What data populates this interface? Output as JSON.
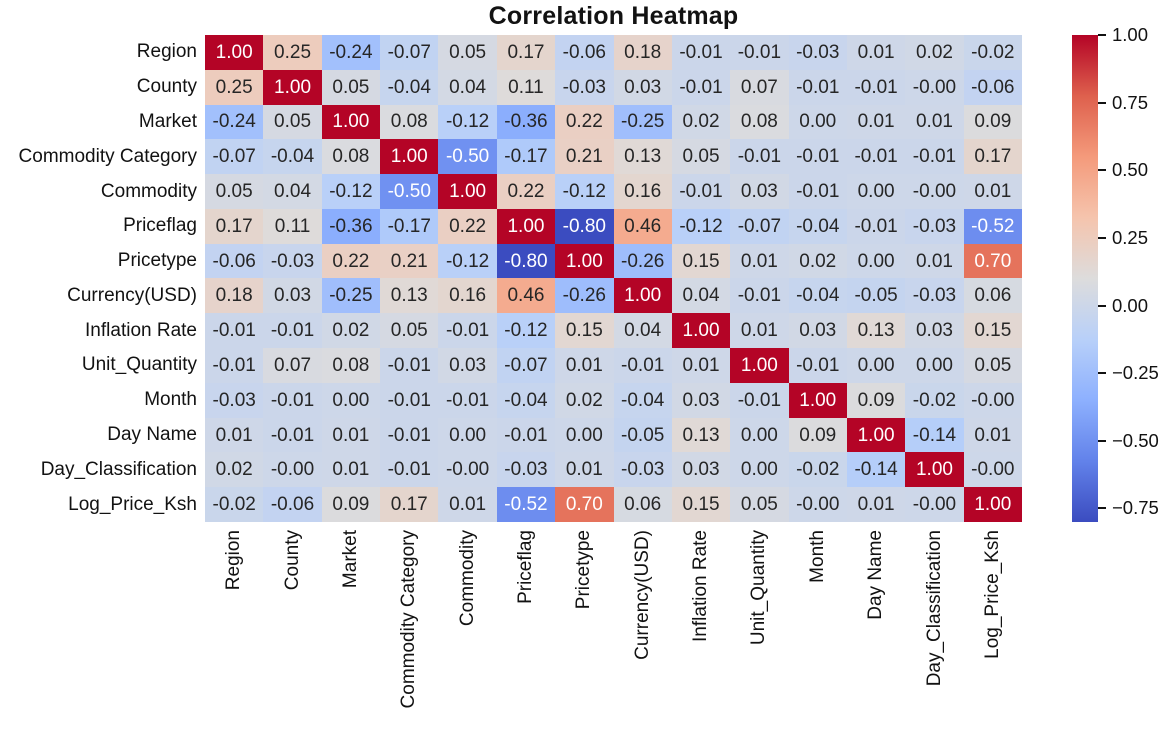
{
  "chart_data": {
    "type": "heatmap",
    "title": "Correlation Heatmap",
    "labels": [
      "Region",
      "County",
      "Market",
      "Commodity Category",
      "Commodity",
      "Priceflag",
      "Pricetype",
      "Currency(USD)",
      "Inflation Rate",
      "Unit_Quantity",
      "Month",
      "Day Name",
      "Day_Classification",
      "Log_Price_Ksh"
    ],
    "matrix": [
      [
        "1.00",
        "0.25",
        "-0.24",
        "-0.07",
        "0.05",
        "0.17",
        "-0.06",
        "0.18",
        "-0.01",
        "-0.01",
        "-0.03",
        "0.01",
        "0.02",
        "-0.02"
      ],
      [
        "0.25",
        "1.00",
        "0.05",
        "-0.04",
        "0.04",
        "0.11",
        "-0.03",
        "0.03",
        "-0.01",
        "0.07",
        "-0.01",
        "-0.01",
        "-0.00",
        "-0.06"
      ],
      [
        "-0.24",
        "0.05",
        "1.00",
        "0.08",
        "-0.12",
        "-0.36",
        "0.22",
        "-0.25",
        "0.02",
        "0.08",
        "0.00",
        "0.01",
        "0.01",
        "0.09"
      ],
      [
        "-0.07",
        "-0.04",
        "0.08",
        "1.00",
        "-0.50",
        "-0.17",
        "0.21",
        "0.13",
        "0.05",
        "-0.01",
        "-0.01",
        "-0.01",
        "-0.01",
        "0.17"
      ],
      [
        "0.05",
        "0.04",
        "-0.12",
        "-0.50",
        "1.00",
        "0.22",
        "-0.12",
        "0.16",
        "-0.01",
        "0.03",
        "-0.01",
        "0.00",
        "-0.00",
        "0.01"
      ],
      [
        "0.17",
        "0.11",
        "-0.36",
        "-0.17",
        "0.22",
        "1.00",
        "-0.80",
        "0.46",
        "-0.12",
        "-0.07",
        "-0.04",
        "-0.01",
        "-0.03",
        "-0.52"
      ],
      [
        "-0.06",
        "-0.03",
        "0.22",
        "0.21",
        "-0.12",
        "-0.80",
        "1.00",
        "-0.26",
        "0.15",
        "0.01",
        "0.02",
        "0.00",
        "0.01",
        "0.70"
      ],
      [
        "0.18",
        "0.03",
        "-0.25",
        "0.13",
        "0.16",
        "0.46",
        "-0.26",
        "1.00",
        "0.04",
        "-0.01",
        "-0.04",
        "-0.05",
        "-0.03",
        "0.06"
      ],
      [
        "-0.01",
        "-0.01",
        "0.02",
        "0.05",
        "-0.01",
        "-0.12",
        "0.15",
        "0.04",
        "1.00",
        "0.01",
        "0.03",
        "0.13",
        "0.03",
        "0.15"
      ],
      [
        "-0.01",
        "0.07",
        "0.08",
        "-0.01",
        "0.03",
        "-0.07",
        "0.01",
        "-0.01",
        "0.01",
        "1.00",
        "-0.01",
        "0.00",
        "0.00",
        "0.05"
      ],
      [
        "-0.03",
        "-0.01",
        "0.00",
        "-0.01",
        "-0.01",
        "-0.04",
        "0.02",
        "-0.04",
        "0.03",
        "-0.01",
        "1.00",
        "0.09",
        "-0.02",
        "-0.00"
      ],
      [
        "0.01",
        "-0.01",
        "0.01",
        "-0.01",
        "0.00",
        "-0.01",
        "0.00",
        "-0.05",
        "0.13",
        "0.00",
        "0.09",
        "1.00",
        "-0.14",
        "0.01"
      ],
      [
        "0.02",
        "-0.00",
        "0.01",
        "-0.01",
        "-0.00",
        "-0.03",
        "0.01",
        "-0.03",
        "0.03",
        "0.00",
        "-0.02",
        "-0.14",
        "1.00",
        "-0.00"
      ],
      [
        "-0.02",
        "-0.06",
        "0.09",
        "0.17",
        "0.01",
        "-0.52",
        "0.70",
        "0.06",
        "0.15",
        "0.05",
        "-0.00",
        "0.01",
        "-0.00",
        "1.00"
      ]
    ],
    "vmin": -0.8,
    "vmax": 1.0,
    "colormap": "coolwarm",
    "colormap_stops": [
      "#3B4CC0",
      "#6282EA",
      "#8DB0FE",
      "#B8D0F9",
      "#DDDCDC",
      "#F5C4AD",
      "#F49A7B",
      "#DE604D",
      "#B40426"
    ],
    "colorbar_ticks": [
      {
        "value": 1.0,
        "label": "1.00"
      },
      {
        "value": 0.75,
        "label": "0.75"
      },
      {
        "value": 0.5,
        "label": "0.50"
      },
      {
        "value": 0.25,
        "label": "0.25"
      },
      {
        "value": 0.0,
        "label": "0.00"
      },
      {
        "value": -0.25,
        "label": "−0.25"
      },
      {
        "value": -0.5,
        "label": "−0.50"
      },
      {
        "value": -0.75,
        "label": "−0.75"
      }
    ],
    "annotation_color_dark": "#262626",
    "annotation_color_light": "#ffffff",
    "legend_position": "right",
    "grid": false
  }
}
